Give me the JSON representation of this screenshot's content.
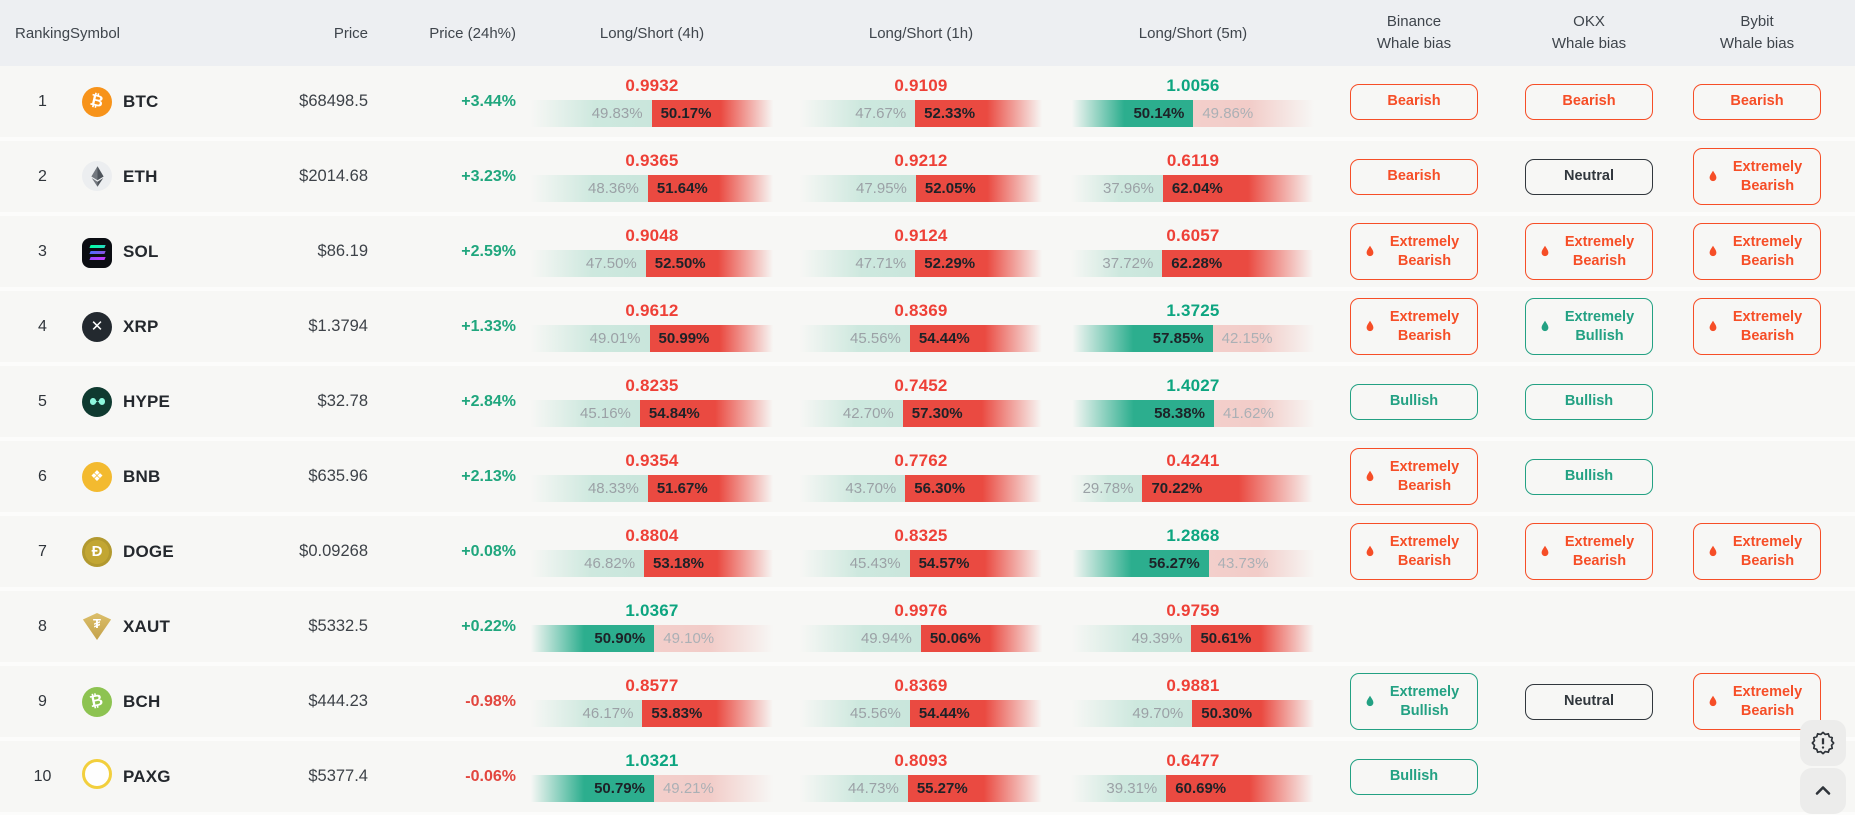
{
  "header": {
    "ranking": "Ranking",
    "symbol": "Symbol",
    "price": "Price",
    "change": "Price (24h%)",
    "ls4h": "Long/Short (4h)",
    "ls1h": "Long/Short (1h)",
    "ls5m": "Long/Short (5m)",
    "binance": "Binance",
    "okx": "OKX",
    "bybit": "Bybit",
    "whale_bias": "Whale bias"
  },
  "colors": {
    "ratio_up_teal": "#0da580",
    "ratio_down_red": "#ee4037",
    "bar_long_win": "#2cae8e",
    "bar_long_lose": "#c9e6dc",
    "bar_short_win": "#ea4a41",
    "bar_short_lose": "#f3cfcb",
    "bias_bearish_orange": "#f64e27",
    "bias_bullish_teal": "#23a183",
    "bias_neutral_dark": "#31373d",
    "change_up": "#1fa67d",
    "change_down": "#e2463e",
    "header_bg": "#edeff2",
    "row_bg": "#f7f7f5"
  },
  "icons": {
    "extreme_bias": "flame-drop-icon",
    "report": "alert-seal-icon",
    "scroll_top": "chevron-up-icon"
  },
  "rows": [
    {
      "rank": "1",
      "symbol": "BTC",
      "icon": "btc",
      "price": "$68498.5",
      "change": "+3.44%",
      "ls4h": {
        "ratio": "0.9932",
        "long": "49.83%",
        "short": "50.17%"
      },
      "ls1h": {
        "ratio": "0.9109",
        "long": "47.67%",
        "short": "52.33%"
      },
      "ls5m": {
        "ratio": "1.0056",
        "long": "50.14%",
        "short": "49.86%"
      },
      "binance": "Bearish",
      "okx": "Bearish",
      "bybit": "Bearish"
    },
    {
      "rank": "2",
      "symbol": "ETH",
      "icon": "eth",
      "price": "$2014.68",
      "change": "+3.23%",
      "ls4h": {
        "ratio": "0.9365",
        "long": "48.36%",
        "short": "51.64%"
      },
      "ls1h": {
        "ratio": "0.9212",
        "long": "47.95%",
        "short": "52.05%"
      },
      "ls5m": {
        "ratio": "0.6119",
        "long": "37.96%",
        "short": "62.04%"
      },
      "binance": "Bearish",
      "okx": "Neutral",
      "bybit": "Extremely Bearish"
    },
    {
      "rank": "3",
      "symbol": "SOL",
      "icon": "sol",
      "price": "$86.19",
      "change": "+2.59%",
      "ls4h": {
        "ratio": "0.9048",
        "long": "47.50%",
        "short": "52.50%"
      },
      "ls1h": {
        "ratio": "0.9124",
        "long": "47.71%",
        "short": "52.29%"
      },
      "ls5m": {
        "ratio": "0.6057",
        "long": "37.72%",
        "short": "62.28%"
      },
      "binance": "Extremely Bearish",
      "okx": "Extremely Bearish",
      "bybit": "Extremely Bearish"
    },
    {
      "rank": "4",
      "symbol": "XRP",
      "icon": "xrp",
      "price": "$1.3794",
      "change": "+1.33%",
      "ls4h": {
        "ratio": "0.9612",
        "long": "49.01%",
        "short": "50.99%"
      },
      "ls1h": {
        "ratio": "0.8369",
        "long": "45.56%",
        "short": "54.44%"
      },
      "ls5m": {
        "ratio": "1.3725",
        "long": "57.85%",
        "short": "42.15%"
      },
      "binance": "Extremely Bearish",
      "okx": "Extremely Bullish",
      "bybit": "Extremely Bearish"
    },
    {
      "rank": "5",
      "symbol": "HYPE",
      "icon": "hype",
      "price": "$32.78",
      "change": "+2.84%",
      "ls4h": {
        "ratio": "0.8235",
        "long": "45.16%",
        "short": "54.84%"
      },
      "ls1h": {
        "ratio": "0.7452",
        "long": "42.70%",
        "short": "57.30%"
      },
      "ls5m": {
        "ratio": "1.4027",
        "long": "58.38%",
        "short": "41.62%"
      },
      "binance": "Bullish",
      "okx": "Bullish",
      "bybit": null
    },
    {
      "rank": "6",
      "symbol": "BNB",
      "icon": "bnb",
      "price": "$635.96",
      "change": "+2.13%",
      "ls4h": {
        "ratio": "0.9354",
        "long": "48.33%",
        "short": "51.67%"
      },
      "ls1h": {
        "ratio": "0.7762",
        "long": "43.70%",
        "short": "56.30%"
      },
      "ls5m": {
        "ratio": "0.4241",
        "long": "29.78%",
        "short": "70.22%"
      },
      "binance": "Extremely Bearish",
      "okx": "Bullish",
      "bybit": null
    },
    {
      "rank": "7",
      "symbol": "DOGE",
      "icon": "doge",
      "price": "$0.09268",
      "change": "+0.08%",
      "ls4h": {
        "ratio": "0.8804",
        "long": "46.82%",
        "short": "53.18%"
      },
      "ls1h": {
        "ratio": "0.8325",
        "long": "45.43%",
        "short": "54.57%"
      },
      "ls5m": {
        "ratio": "1.2868",
        "long": "56.27%",
        "short": "43.73%"
      },
      "binance": "Extremely Bearish",
      "okx": "Extremely Bearish",
      "bybit": "Extremely Bearish"
    },
    {
      "rank": "8",
      "symbol": "XAUT",
      "icon": "xaut",
      "price": "$5332.5",
      "change": "+0.22%",
      "ls4h": {
        "ratio": "1.0367",
        "long": "50.90%",
        "short": "49.10%"
      },
      "ls1h": {
        "ratio": "0.9976",
        "long": "49.94%",
        "short": "50.06%"
      },
      "ls5m": {
        "ratio": "0.9759",
        "long": "49.39%",
        "short": "50.61%"
      },
      "binance": null,
      "okx": null,
      "bybit": null
    },
    {
      "rank": "9",
      "symbol": "BCH",
      "icon": "bch",
      "price": "$444.23",
      "change": "-0.98%",
      "ls4h": {
        "ratio": "0.8577",
        "long": "46.17%",
        "short": "53.83%"
      },
      "ls1h": {
        "ratio": "0.8369",
        "long": "45.56%",
        "short": "54.44%"
      },
      "ls5m": {
        "ratio": "0.9881",
        "long": "49.70%",
        "short": "50.30%"
      },
      "binance": "Extremely Bullish",
      "okx": "Neutral",
      "bybit": "Extremely Bearish"
    },
    {
      "rank": "10",
      "symbol": "PAXG",
      "icon": "paxg",
      "price": "$5377.4",
      "change": "-0.06%",
      "ls4h": {
        "ratio": "1.0321",
        "long": "50.79%",
        "short": "49.21%"
      },
      "ls1h": {
        "ratio": "0.8093",
        "long": "44.73%",
        "short": "55.27%"
      },
      "ls5m": {
        "ratio": "0.6477",
        "long": "39.31%",
        "short": "60.69%"
      },
      "binance": "Bullish",
      "okx": null,
      "bybit": null
    }
  ]
}
